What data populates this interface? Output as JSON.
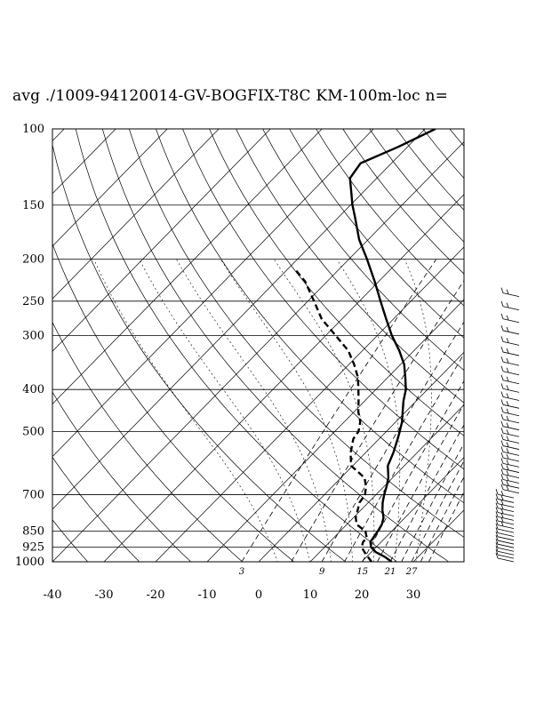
{
  "title": "avg ./1009-94120014-GV-BOGFIX-T8C KM-100m-loc n=",
  "chart_data": {
    "type": "skew-t",
    "y_axis": {
      "scale": "log-pressure",
      "units": "hPa",
      "range": [
        1000,
        100
      ],
      "tick_labels": [
        "100",
        "150",
        "200",
        "250",
        "300",
        "400",
        "500",
        "700",
        "850",
        "925",
        "1000"
      ]
    },
    "x_axis": {
      "units": "degC",
      "range": [
        -40,
        40
      ],
      "tick_labels": [
        "-40",
        "-30",
        "-20",
        "-10",
        "0",
        "10",
        "20",
        "30"
      ]
    },
    "mixing_ratio_labels": [
      "3",
      "9",
      "15",
      "21",
      "27"
    ],
    "series": [
      {
        "kind": "temperature",
        "style": "solid",
        "points": [
          [
            1000,
            25.8
          ],
          [
            975,
            23.6
          ],
          [
            950,
            20.9
          ],
          [
            925,
            19.0
          ],
          [
            900,
            17.9
          ],
          [
            850,
            17.3
          ],
          [
            820,
            16.8
          ],
          [
            790,
            15.8
          ],
          [
            760,
            14.2
          ],
          [
            730,
            12.8
          ],
          [
            700,
            11.6
          ],
          [
            670,
            10.5
          ],
          [
            640,
            9.2
          ],
          [
            600,
            6.8
          ],
          [
            560,
            5.4
          ],
          [
            520,
            3.6
          ],
          [
            500,
            2.6
          ],
          [
            475,
            1.2
          ],
          [
            450,
            -0.6
          ],
          [
            425,
            -2.5
          ],
          [
            400,
            -4.2
          ],
          [
            375,
            -6.6
          ],
          [
            350,
            -9.3
          ],
          [
            325,
            -12.9
          ],
          [
            300,
            -17.2
          ],
          [
            275,
            -21.4
          ],
          [
            250,
            -25.9
          ],
          [
            225,
            -30.8
          ],
          [
            200,
            -36.5
          ],
          [
            180,
            -41.8
          ],
          [
            160,
            -46.8
          ],
          [
            150,
            -49.6
          ],
          [
            140,
            -52.3
          ],
          [
            130,
            -55.2
          ],
          [
            120,
            -56.0
          ],
          [
            110,
            -51.8
          ],
          [
            100,
            -48.0
          ]
        ]
      },
      {
        "kind": "dewpoint",
        "style": "dashed",
        "points": [
          [
            1000,
            21.9
          ],
          [
            975,
            20.3
          ],
          [
            950,
            18.7
          ],
          [
            925,
            17.2
          ],
          [
            900,
            16.5
          ],
          [
            880,
            16.4
          ],
          [
            850,
            14.9
          ],
          [
            820,
            11.9
          ],
          [
            790,
            10.4
          ],
          [
            760,
            9.4
          ],
          [
            730,
            8.3
          ],
          [
            700,
            7.9
          ],
          [
            670,
            6.5
          ],
          [
            640,
            4.6
          ],
          [
            600,
            -0.3
          ],
          [
            560,
            -2.9
          ],
          [
            520,
            -5.0
          ],
          [
            500,
            -5.4
          ],
          [
            475,
            -6.9
          ],
          [
            450,
            -9.2
          ],
          [
            425,
            -11.2
          ],
          [
            400,
            -13.4
          ],
          [
            375,
            -15.8
          ],
          [
            350,
            -19.0
          ],
          [
            325,
            -22.8
          ],
          [
            300,
            -28.1
          ],
          [
            275,
            -33.9
          ],
          [
            250,
            -38.8
          ],
          [
            225,
            -44.3
          ],
          [
            210,
            -48.9
          ]
        ]
      }
    ],
    "grid": true,
    "wind_barbs": true
  }
}
